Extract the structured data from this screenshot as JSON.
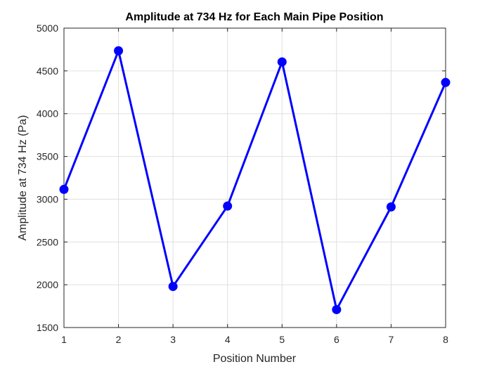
{
  "chart_data": {
    "type": "line",
    "title": "Amplitude at 734 Hz for Each Main Pipe Position",
    "xlabel": "Position Number",
    "ylabel": "Amplitude at 734 Hz (Pa)",
    "x": [
      1,
      2,
      3,
      4,
      5,
      6,
      7,
      8
    ],
    "series": [
      {
        "values": [
          3115,
          4735,
          1980,
          2920,
          4605,
          1710,
          2910,
          4365
        ],
        "color": "#0000ff",
        "marker": "circle"
      }
    ],
    "xlim": [
      1,
      8
    ],
    "ylim": [
      1500,
      5000
    ],
    "xticks": [
      1,
      2,
      3,
      4,
      5,
      6,
      7,
      8
    ],
    "yticks": [
      1500,
      2000,
      2500,
      3000,
      3500,
      4000,
      4500,
      5000
    ],
    "grid": true
  }
}
